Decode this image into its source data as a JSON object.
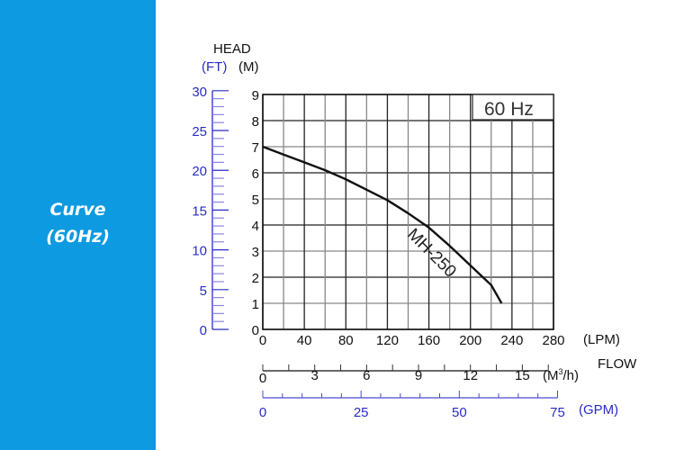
{
  "sidebar": {
    "line1": "Curve",
    "line2": "(60Hz)",
    "bg_color": "#0d9ae0"
  },
  "labels": {
    "head": "HEAD",
    "ft_unit": "(FT)",
    "m_unit": "(M)",
    "freq": "60 Hz",
    "curve_name": "MH-250",
    "lpm_unit": "(LPM)",
    "flow": "FLOW",
    "m3h_unit": "(M",
    "m3h_sup": "3",
    "m3h_tail": "/h)",
    "gpm_unit": "(GPM)"
  },
  "ticks": {
    "head_m": [
      "0",
      "1",
      "2",
      "3",
      "4",
      "5",
      "6",
      "7",
      "8",
      "9"
    ],
    "head_ft": [
      "0",
      "5",
      "10",
      "15",
      "20",
      "25",
      "30"
    ],
    "lpm": [
      "0",
      "40",
      "80",
      "120",
      "160",
      "200",
      "240",
      "280"
    ],
    "m3h": [
      "0",
      "3",
      "6",
      "9",
      "12",
      "15"
    ],
    "gpm": [
      "0",
      "25",
      "50",
      "75"
    ]
  },
  "chart_data": {
    "type": "line",
    "title": "60 Hz",
    "xlabel": "FLOW (LPM)",
    "ylabel": "HEAD (M)",
    "xlim": [
      0,
      280
    ],
    "ylim": [
      0,
      9
    ],
    "grid": true,
    "secondary_axes": {
      "y_ft": [
        0,
        30
      ],
      "x_m3h": [
        0,
        16.8
      ],
      "x_gpm": [
        0,
        75
      ]
    },
    "series": [
      {
        "name": "MH-250",
        "x": [
          0,
          20,
          40,
          60,
          80,
          100,
          120,
          140,
          160,
          180,
          200,
          220,
          230
        ],
        "y": [
          7.0,
          6.7,
          6.4,
          6.1,
          5.75,
          5.35,
          4.95,
          4.45,
          3.9,
          3.2,
          2.45,
          1.7,
          1.0
        ]
      }
    ]
  }
}
